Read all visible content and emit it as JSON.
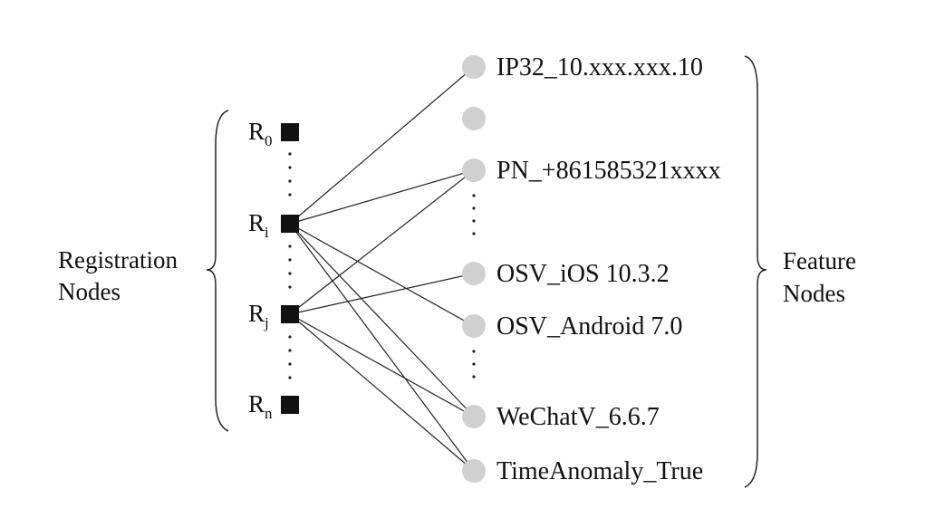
{
  "left_group": {
    "line1": "Registration",
    "line2": "Nodes"
  },
  "right_group": {
    "line1": "Feature",
    "line2": "Nodes"
  },
  "registration_nodes": [
    {
      "id": "r0",
      "base": "R",
      "sub": "0"
    },
    {
      "id": "ri",
      "base": "R",
      "sub": "i"
    },
    {
      "id": "rj",
      "base": "R",
      "sub": "j"
    },
    {
      "id": "rn",
      "base": "R",
      "sub": "n"
    }
  ],
  "feature_nodes": [
    {
      "id": "ip",
      "label": "IP32_10.xxx.xxx.10"
    },
    {
      "id": "blank",
      "label": ""
    },
    {
      "id": "pn",
      "label": "PN_+861585321xxxx"
    },
    {
      "id": "osv_ios",
      "label": "OSV_iOS 10.3.2"
    },
    {
      "id": "osv_android",
      "label": "OSV_Android 7.0"
    },
    {
      "id": "wechat",
      "label": "WeChatV_6.6.7"
    },
    {
      "id": "time",
      "label": "TimeAnomaly_True"
    }
  ],
  "edges": [
    [
      "ri",
      "ip"
    ],
    [
      "ri",
      "pn"
    ],
    [
      "ri",
      "osv_android"
    ],
    [
      "ri",
      "wechat"
    ],
    [
      "ri",
      "time"
    ],
    [
      "rj",
      "pn"
    ],
    [
      "rj",
      "osv_ios"
    ],
    [
      "rj",
      "wechat"
    ],
    [
      "rj",
      "time"
    ]
  ],
  "colors": {
    "registration_node": "#111111",
    "feature_node": "#d0d0d0",
    "edge": "#222222"
  }
}
